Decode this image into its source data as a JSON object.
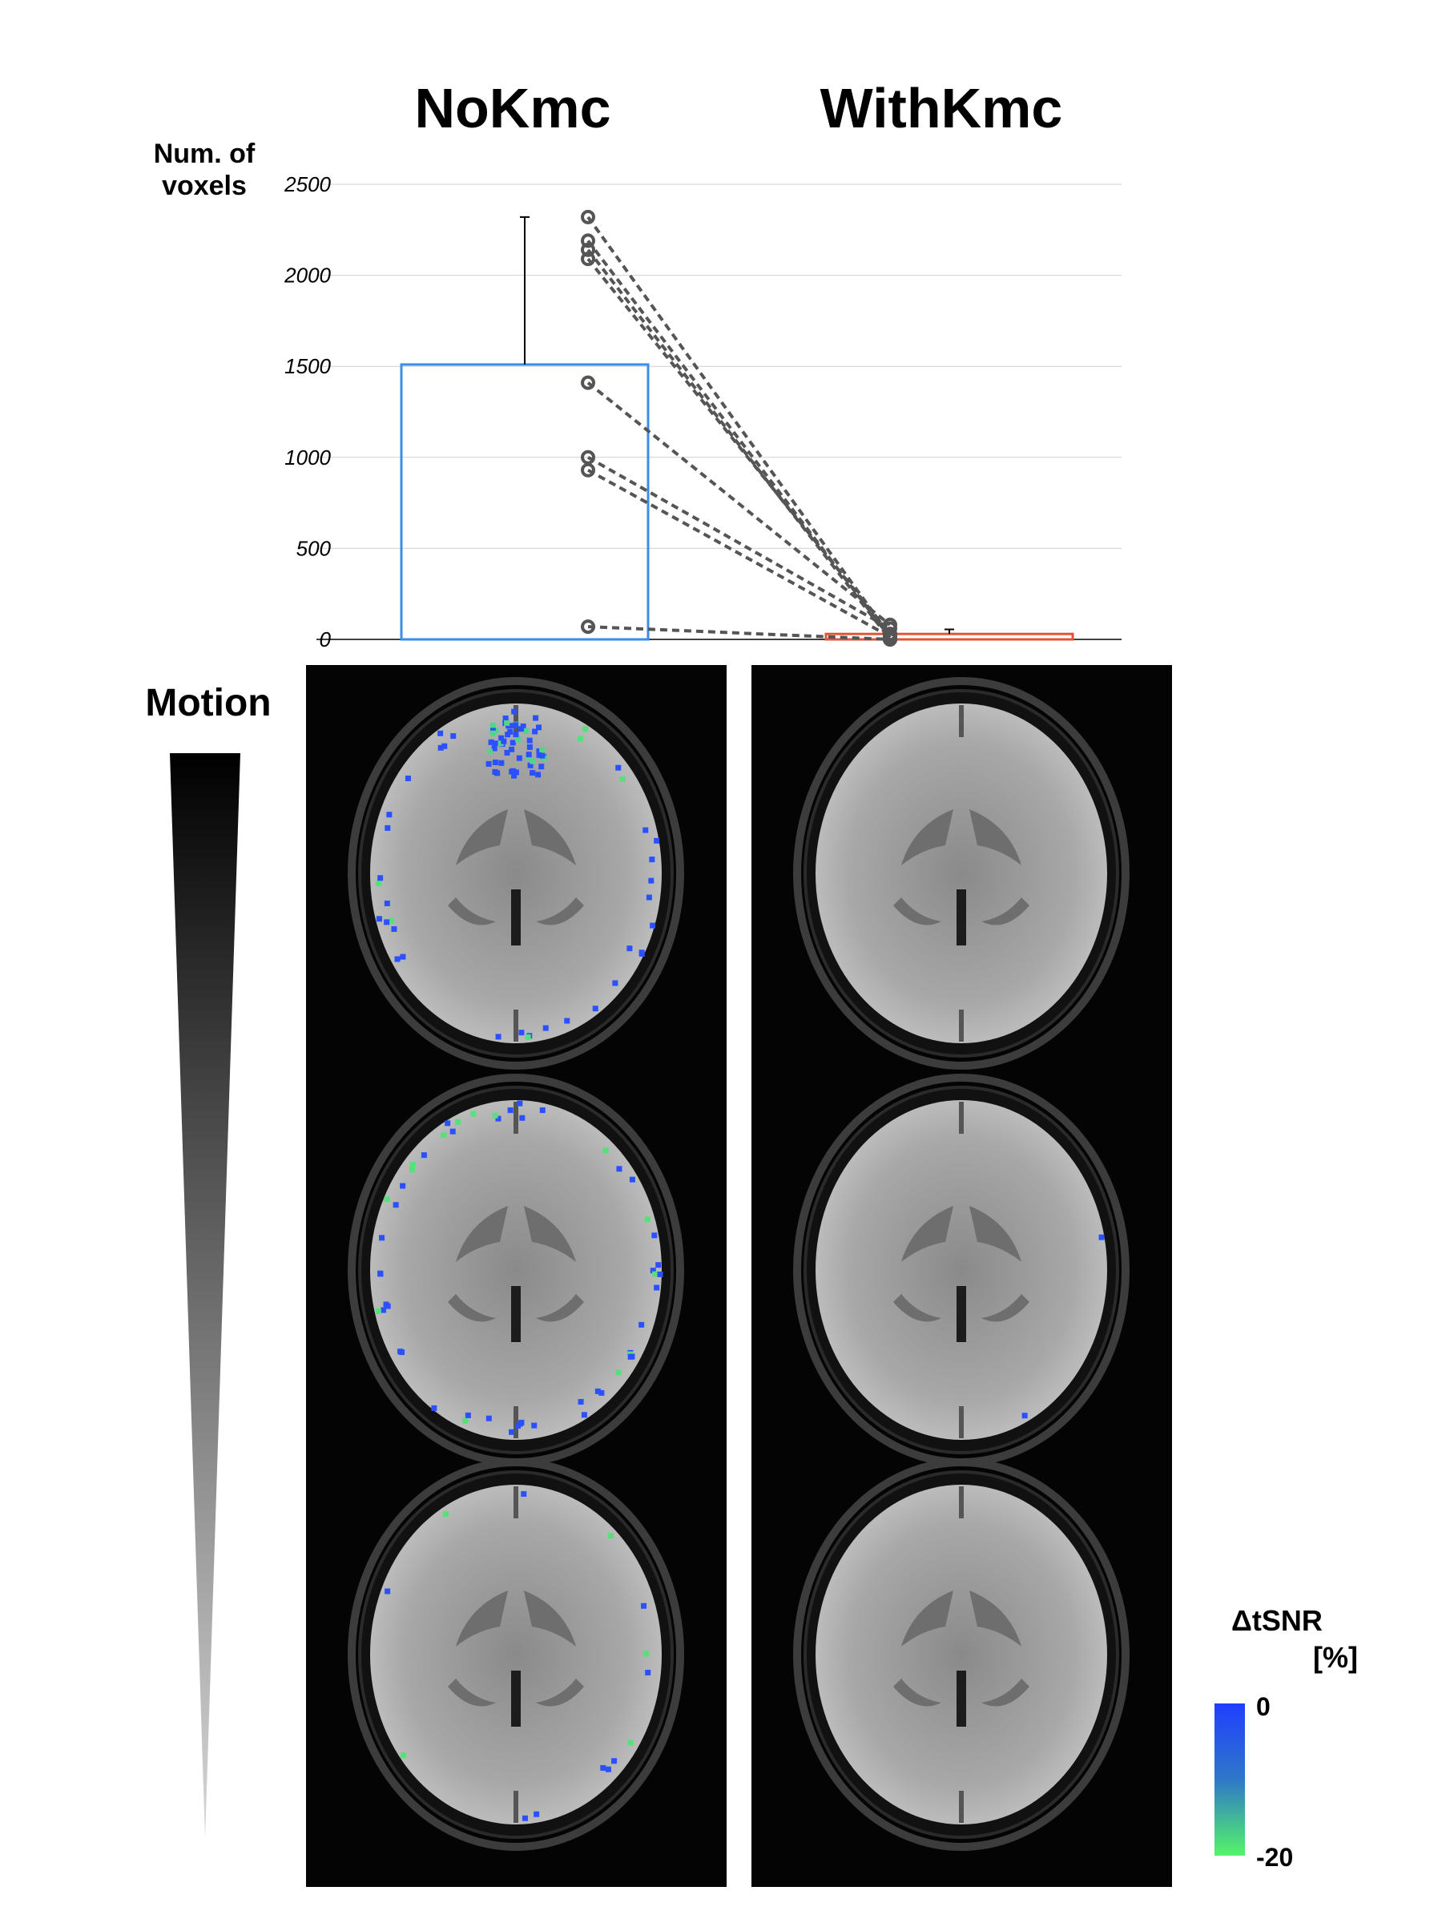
{
  "titles": {
    "left": "NoKmc",
    "right": "WithKmc"
  },
  "chart_data": {
    "type": "bar",
    "categories": [
      "NoKmc",
      "WithKmc"
    ],
    "values": [
      1510,
      30
    ],
    "errors": [
      810,
      25
    ],
    "bar_colors": [
      "#3a8ee6",
      "#e0553a"
    ],
    "ylabel_lines": [
      "Num. of",
      "voxels"
    ],
    "ylim": [
      0,
      2500
    ],
    "yticks": [
      "0",
      "500",
      "1000",
      "1500",
      "2000",
      "2500"
    ],
    "grid": true,
    "paired_subjects": [
      {
        "nokmc": 2320,
        "withkmc": 20
      },
      {
        "nokmc": 2190,
        "withkmc": 10
      },
      {
        "nokmc": 2140,
        "withkmc": 0
      },
      {
        "nokmc": 2090,
        "withkmc": 30
      },
      {
        "nokmc": 1410,
        "withkmc": 80
      },
      {
        "nokmc": 1000,
        "withkmc": 60
      },
      {
        "nokmc": 930,
        "withkmc": 15
      },
      {
        "nokmc": 70,
        "withkmc": 0
      }
    ]
  },
  "motion": {
    "label": "Motion",
    "direction": "decreasing from top to bottom"
  },
  "panels": {
    "left": {
      "name": "NoKmc",
      "slices": 3
    },
    "right": {
      "name": "WithKmc",
      "slices": 3
    }
  },
  "colorbar": {
    "title_line1": "ΔtSNR",
    "title_line2": "[%]",
    "max_label": "0",
    "min_label": "-20",
    "colors": [
      "#1f3fff",
      "#55f46a"
    ]
  }
}
